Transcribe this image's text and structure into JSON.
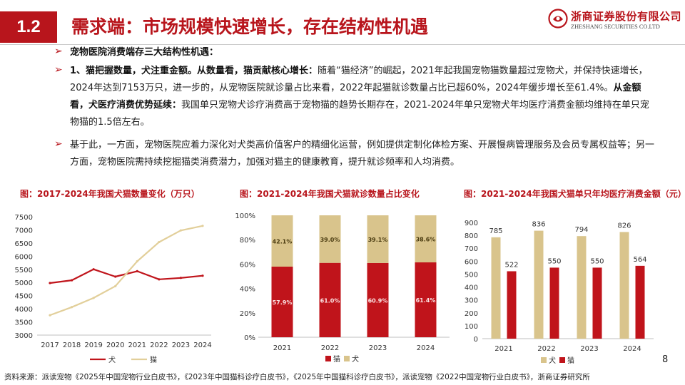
{
  "header": {
    "section_number": "1.2",
    "title": "需求端：市场规模快速增长，存在结构性机遇",
    "logo_cn": "浙商证券股份有限公司",
    "logo_en": "ZHESHANG SECURITIES CO.LTD"
  },
  "bullets": [
    {
      "segments": [
        {
          "text": "宠物医院消费端存三大结构性机遇：",
          "bold": true
        }
      ]
    },
    {
      "segments": [
        {
          "text": "1、猫把握数量，犬注重金额。从数量看，猫贡献核心增长：",
          "bold": true
        },
        {
          "text": "随着“猫经济”的崛起，2021年起我国宠物猫数量超过宠物犬，并保持快速增长，2024年达到7153万只，进一步的，从宠物医院就诊量占比来看，2022年起猫就诊数量占比已超60%，2024年缓步增长至61.4%。",
          "bold": false
        },
        {
          "text": "从金额看，犬医疗消费优势延续：",
          "bold": true
        },
        {
          "text": "我国单只宠物犬诊疗消费高于宠物猫的趋势长期存在，2021-2024年单只宠物犬年均医疗消费金额均维持在单只宠物猫的1.5倍左右。",
          "bold": false
        }
      ]
    },
    {
      "segments": [
        {
          "text": "基于此，一方面，宠物医院应着力深化对犬类高价值客户的精细化运营，例如提供定制化体检方案、开展慢病管理服务及会员专属权益等；另一方面，宠物医院需持续挖掘猫类消费潜力，加强对猫主的健康教育，提升就诊频率和人均消费。",
          "bold": false
        }
      ]
    }
  ],
  "chart_data": [
    {
      "type": "line",
      "title": "图：2017-2024年我国犬猫数量变化（万只）",
      "x": [
        "2017",
        "2018",
        "2019",
        "2020",
        "2021",
        "2022",
        "2023",
        "2024"
      ],
      "series": [
        {
          "name": "犬",
          "color": "#c0141b",
          "values": [
            4980,
            5085,
            5503,
            5222,
            5429,
            5119,
            5175,
            5258
          ]
        },
        {
          "name": "猫",
          "color": "#e2cf9a",
          "values": [
            3756,
            4064,
            4412,
            4862,
            5806,
            6536,
            6980,
            7153
          ]
        }
      ],
      "ylim": [
        3000,
        7500
      ],
      "yticks": [
        3000,
        3500,
        4000,
        4500,
        5000,
        5500,
        6000,
        6500,
        7000,
        7500
      ]
    },
    {
      "type": "bar",
      "stacked": true,
      "title": "图：2021-2024年我国犬猫就诊数量占比变化",
      "categories": [
        "2021",
        "2022",
        "2023",
        "2024"
      ],
      "series": [
        {
          "name": "猫",
          "color": "#c0141b",
          "values": [
            57.9,
            61.0,
            60.9,
            61.4
          ],
          "labels": [
            "57.9%",
            "61.0%",
            "60.9%",
            "61.4%"
          ]
        },
        {
          "name": "犬",
          "color": "#d9c48c",
          "values": [
            42.1,
            39.0,
            39.1,
            38.6
          ],
          "labels": [
            "42.1%",
            "39.0%",
            "39.1%",
            "38.6%"
          ]
        }
      ],
      "ylim": [
        0,
        100
      ],
      "ytick_labels": [
        "0%",
        "20%",
        "40%",
        "60%",
        "80%",
        "100%"
      ]
    },
    {
      "type": "bar",
      "title": "图：2021-2024年我国犬猫单只年均医疗消费金额（元）",
      "categories": [
        "2021",
        "2022",
        "2023",
        "2024"
      ],
      "series": [
        {
          "name": "犬",
          "color": "#d9c48c",
          "values": [
            785,
            836,
            794,
            826
          ]
        },
        {
          "name": "猫",
          "color": "#c0141b",
          "values": [
            522,
            550,
            550,
            564
          ]
        }
      ],
      "ylim": [
        0,
        900
      ],
      "yticks": [
        0,
        100,
        200,
        300,
        400,
        500,
        600,
        700,
        800,
        900
      ]
    }
  ],
  "footer": {
    "source": "资料来源：派读宠物《2025年中国宠物行业白皮书》，《2023年中国猫科诊疗白皮书》，《2025年中国猫科诊疗白皮书》，派读宠物《2022中国宠物行业白皮书》，浙商证券研究所",
    "page_number": "8"
  }
}
